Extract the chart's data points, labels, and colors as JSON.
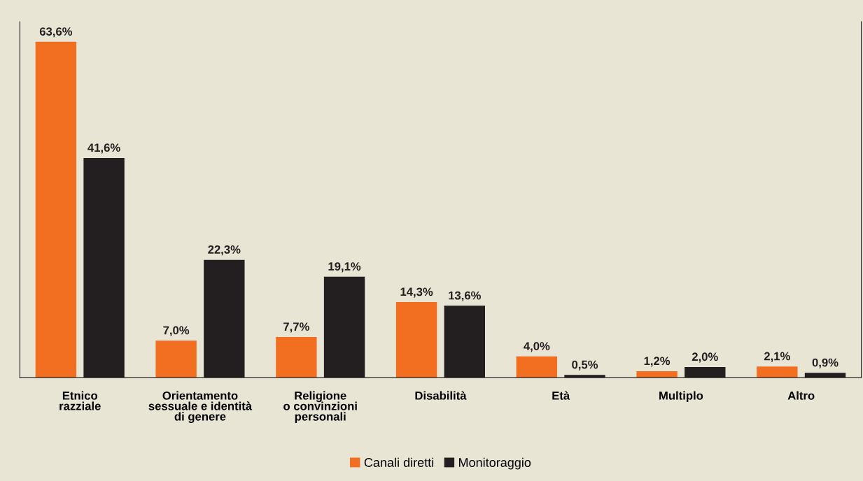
{
  "chart_data": {
    "type": "bar",
    "categories": [
      "Etnico\nrazziale",
      "Orientamento\nsessuale e identità\ndi genere",
      "Religione\no convinzioni\npersonali",
      "Disabilità",
      "Età",
      "Multiplo",
      "Altro"
    ],
    "series": [
      {
        "name": "Canali diretti",
        "color": "#f26f21",
        "values": [
          63.6,
          7.0,
          7.7,
          14.3,
          4.0,
          1.2,
          2.1
        ],
        "value_labels": [
          "63,6%",
          "7,0%",
          "7,7%",
          "14,3%",
          "4,0%",
          "1,2%",
          "2,1%"
        ]
      },
      {
        "name": "Monitoraggio",
        "color": "#231f20",
        "values": [
          41.6,
          22.3,
          19.1,
          13.6,
          0.5,
          2.0,
          0.9
        ],
        "value_labels": [
          "41,6%",
          "22,3%",
          "19,1%",
          "13,6%",
          "0,5%",
          "2,0%",
          "0,9%"
        ]
      }
    ],
    "legend": "bottom",
    "grid": false,
    "tick_labels": "x"
  }
}
